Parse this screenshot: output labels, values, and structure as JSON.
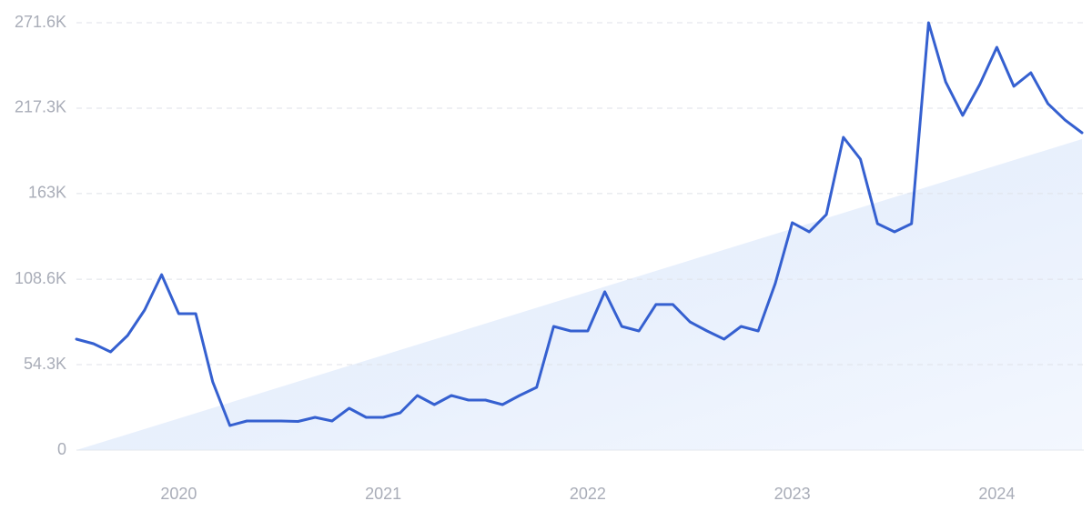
{
  "chart_data": {
    "type": "line",
    "categories": [
      null,
      null,
      null,
      null,
      null,
      null,
      "2020",
      null,
      null,
      null,
      null,
      null,
      null,
      null,
      null,
      null,
      null,
      null,
      "2021",
      null,
      null,
      null,
      null,
      null,
      null,
      null,
      null,
      null,
      null,
      null,
      "2022",
      null,
      null,
      null,
      null,
      null,
      null,
      null,
      null,
      null,
      null,
      null,
      "2023",
      null,
      null,
      null,
      null,
      null,
      null,
      null,
      null,
      null,
      null,
      null,
      "2024",
      null,
      null,
      null,
      null,
      null
    ],
    "series": [
      {
        "color": "#3560d0",
        "values": [
          70500,
          67600,
          62400,
          72800,
          89000,
          111500,
          86700,
          86700,
          43300,
          15600,
          18500,
          18500,
          18500,
          18200,
          20800,
          18500,
          26600,
          20800,
          20800,
          23700,
          34700,
          28900,
          34700,
          31800,
          31800,
          28900,
          34700,
          39900,
          78600,
          75700,
          75700,
          100600,
          78600,
          75700,
          92500,
          92500,
          81500,
          75700,
          70500,
          78600,
          75700,
          105800,
          144500,
          138700,
          149700,
          198800,
          184900,
          143900,
          138700,
          143900,
          271600,
          234000,
          212700,
          232300,
          256000,
          231200,
          239800,
          220200,
          209800,
          201700
        ]
      }
    ],
    "ylim": [
      0,
      271600
    ],
    "yticks": [
      0,
      {
        "value": 54300,
        "label": "54.3K"
      },
      {
        "value": 108600,
        "label": "108.6K"
      },
      {
        "value": 163000,
        "label": "163K"
      },
      {
        "value": 217300,
        "label": "217.3K"
      },
      {
        "value": 271600,
        "label": "271.6K"
      }
    ],
    "grid": true
  }
}
